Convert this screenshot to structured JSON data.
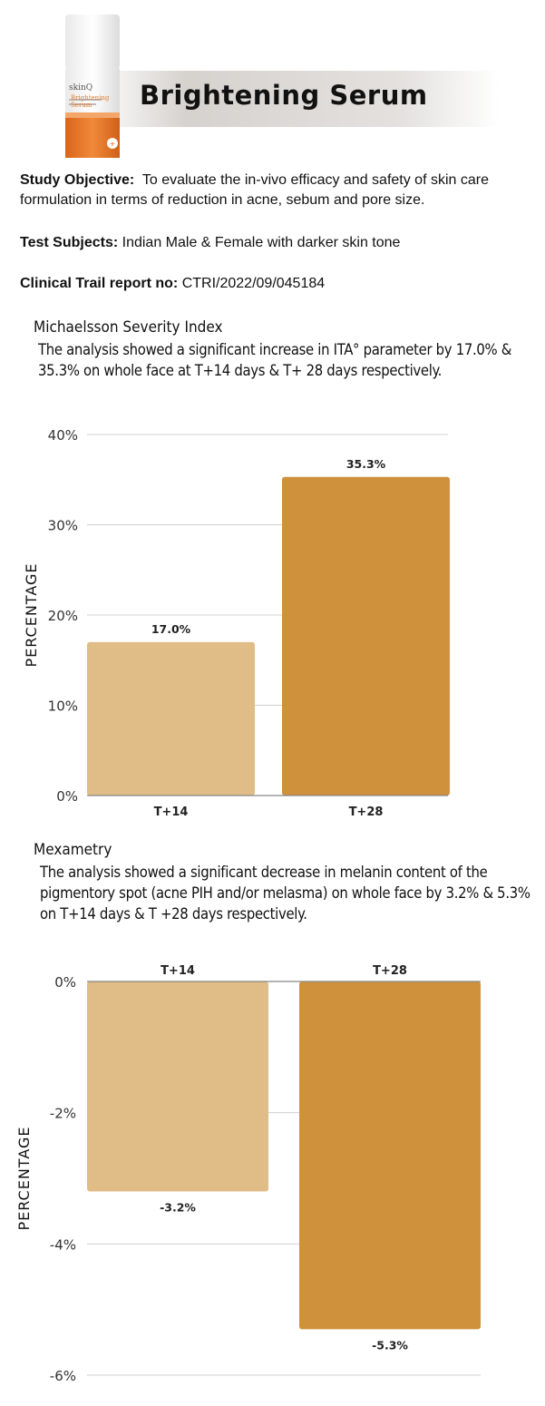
{
  "product": {
    "title": "Brightening Serum",
    "bottle_brand": "skinQ",
    "bottle_name": "Brightening Serum"
  },
  "info": {
    "objective_label": "Study Objective:",
    "objective_text": "To evaluate the in-vivo efficacy and safety of skin care formulation in terms of reduction in acne, sebum and pore size.",
    "subjects_label": "Test Subjects:",
    "subjects_text": "Indian Male & Female with darker skin tone",
    "report_label": "Clinical Trail report no:",
    "report_text": "CTRI/2022/09/045184"
  },
  "section1": {
    "title": "Michaelsson Severity Index",
    "text": "The analysis showed a significant increase in ITA° parameter by 17.0% & 35.3% on whole face at T+14 days & T+ 28 days respectively."
  },
  "section2": {
    "title": "Mexametry",
    "text": "The analysis showed a significant decrease in melanin content of the pigmentory spot (acne PIH and/or melasma) on whole face by 3.2% & 5.3% on T+14 days & T +28 days respectively."
  },
  "colors": {
    "light_bar": "#e0bc86",
    "dark_bar": "#cf913c",
    "grid": "#d0d0d0",
    "orange_accent": "#e07a2a"
  },
  "chart_data": [
    {
      "type": "bar",
      "categories": [
        "T+14",
        "T+28"
      ],
      "values": [
        17.0,
        35.3
      ],
      "value_labels": [
        "17.0%",
        "35.3%"
      ],
      "ylabel": "PERCENTAGE",
      "ylim": [
        0,
        40
      ],
      "yticks": [
        0,
        10,
        20,
        30,
        40
      ],
      "ytick_labels": [
        "0%",
        "10%",
        "20%",
        "30%",
        "40%"
      ],
      "grid": true
    },
    {
      "type": "bar",
      "categories": [
        "T+14",
        "T+28"
      ],
      "values": [
        -3.2,
        -5.3
      ],
      "value_labels": [
        "-3.2%",
        "-5.3%"
      ],
      "ylabel": "PERCENTAGE",
      "ylim": [
        -6,
        0
      ],
      "yticks": [
        0,
        -2,
        -4,
        -6
      ],
      "ytick_labels": [
        "0%",
        "-2%",
        "-4%",
        "-6%"
      ],
      "grid": true
    }
  ]
}
